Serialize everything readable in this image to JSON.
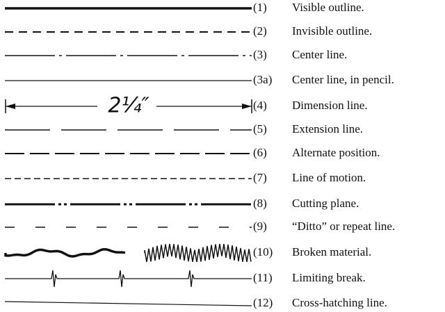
{
  "dimension_label": "2¼″",
  "items": [
    {
      "number": "(1)",
      "label": "Visible outline."
    },
    {
      "number": "(2)",
      "label": "Invisible outline."
    },
    {
      "number": "(3)",
      "label": "Center line."
    },
    {
      "number": "(3a)",
      "label": "Center line, in pencil."
    },
    {
      "number": "(4)",
      "label": "Dimension line."
    },
    {
      "number": "(5)",
      "label": "Extension line."
    },
    {
      "number": "(6)",
      "label": "Alternate position."
    },
    {
      "number": "(7)",
      "label": "Line of motion."
    },
    {
      "number": "(8)",
      "label": "Cutting plane."
    },
    {
      "number": "(9)",
      "label": "“Ditto” or repeat line."
    },
    {
      "number": "(10)",
      "label": "Broken material."
    },
    {
      "number": "(11)",
      "label": "Limiting break."
    },
    {
      "number": "(12)",
      "label": "Cross-hatching line."
    }
  ]
}
